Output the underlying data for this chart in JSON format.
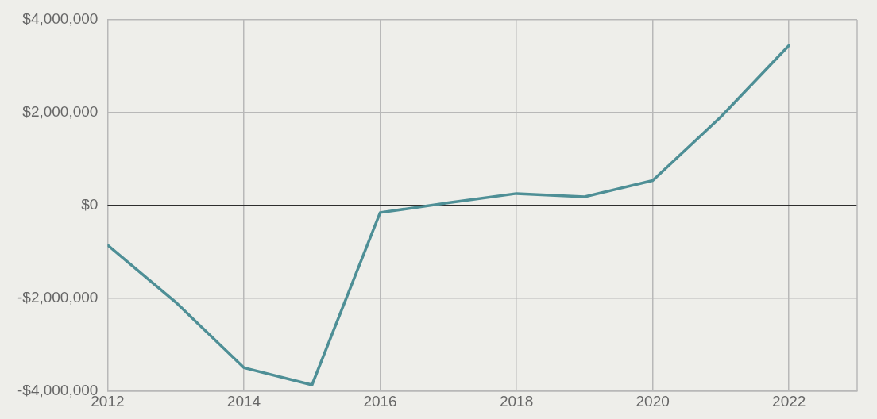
{
  "chart_data": {
    "type": "line",
    "x": [
      2012,
      2013,
      2014,
      2015,
      2016,
      2017,
      2018,
      2019,
      2020,
      2021,
      2022
    ],
    "series": [
      {
        "color": "#4e8f96",
        "values": [
          -850000,
          -2080000,
          -3490000,
          -3860000,
          -150000,
          60000,
          260000,
          190000,
          540000,
          1910000,
          3450000
        ]
      }
    ],
    "xlim": [
      2012,
      2023
    ],
    "xticks": [
      2012,
      2014,
      2016,
      2018,
      2020,
      2022
    ],
    "ylim": [
      -4000000,
      4000000
    ],
    "yticks": [
      {
        "value": -4000000,
        "label": "-$4,000,000"
      },
      {
        "value": -2000000,
        "label": "-$2,000,000"
      },
      {
        "value": 0,
        "label": "$0"
      },
      {
        "value": 2000000,
        "label": "$2,000,000"
      },
      {
        "value": 4000000,
        "label": "$4,000,000"
      }
    ],
    "ref_lines": [
      {
        "axis": "y",
        "value": 0,
        "color": "#000000"
      }
    ],
    "grid": true,
    "legend": false,
    "marker": "none",
    "line_style": "solid"
  }
}
